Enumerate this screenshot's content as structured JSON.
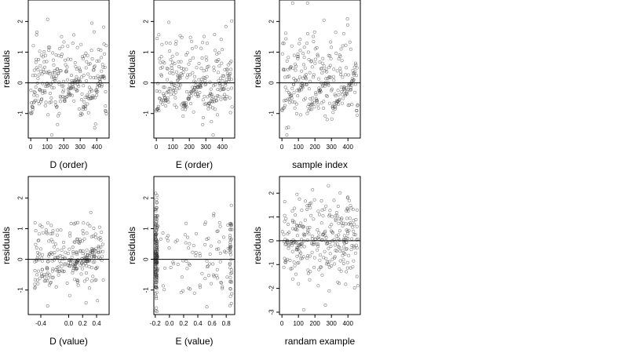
{
  "chart_data": [
    {
      "type": "scatter",
      "xlabel": "D (order)",
      "ylabel": "residuals",
      "xlim": [
        -15,
        475
      ],
      "ylim": [
        -1.8,
        2.7
      ],
      "xticks": [
        0,
        100,
        200,
        300,
        400
      ],
      "yticks": [
        -1,
        0,
        1,
        2
      ],
      "hline": 0,
      "pattern": "order"
    },
    {
      "type": "scatter",
      "xlabel": "E (order)",
      "ylabel": "residuals",
      "xlim": [
        -15,
        475
      ],
      "ylim": [
        -1.8,
        2.7
      ],
      "xticks": [
        0,
        100,
        200,
        300,
        400
      ],
      "yticks": [
        -1,
        0,
        1,
        2
      ],
      "hline": 0,
      "pattern": "order"
    },
    {
      "type": "scatter",
      "xlabel": "sample index",
      "ylabel": "residuals",
      "xlim": [
        -15,
        475
      ],
      "ylim": [
        -1.8,
        2.7
      ],
      "xticks": [
        0,
        100,
        200,
        300,
        400
      ],
      "yticks": [
        -1,
        0,
        1,
        2
      ],
      "hline": 0,
      "pattern": "order"
    },
    {
      "type": "scatter",
      "xlabel": "D (value)",
      "ylabel": "residuals",
      "xlim": [
        -0.58,
        0.58
      ],
      "ylim": [
        -1.8,
        2.7
      ],
      "xticks": [
        -0.4,
        0.0,
        0.2,
        0.4
      ],
      "xtick_labels": [
        "-0.4",
        "0.0",
        "0.2",
        "0.4"
      ],
      "yticks": [
        -1,
        0,
        1,
        2
      ],
      "hline": 0,
      "pattern": "dvalue"
    },
    {
      "type": "scatter",
      "xlabel": "E (value)",
      "ylabel": "residuals",
      "xlim": [
        -0.22,
        0.92
      ],
      "ylim": [
        -1.8,
        2.7
      ],
      "xticks": [
        -0.2,
        0.0,
        0.2,
        0.4,
        0.6,
        0.8
      ],
      "xtick_labels": [
        "-0.2",
        "0.0",
        "0.2",
        "0.4",
        "0.6",
        "0.8"
      ],
      "yticks": [
        -1,
        0,
        1,
        2
      ],
      "hline": 0,
      "pattern": "evalue"
    },
    {
      "type": "scatter",
      "xlabel": "randam example",
      "ylabel": "residuals",
      "xlim": [
        -15,
        475
      ],
      "ylim": [
        -3.1,
        2.7
      ],
      "xticks": [
        0,
        100,
        200,
        300,
        400
      ],
      "yticks": [
        -3,
        -2,
        -1,
        0,
        1,
        2
      ],
      "hline": 0,
      "pattern": "random"
    }
  ]
}
